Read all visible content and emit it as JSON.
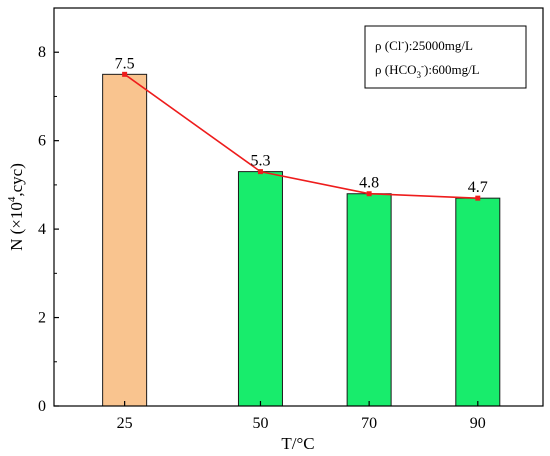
{
  "chart_data": {
    "type": "bar",
    "categories": [
      "25",
      "50",
      "70",
      "90"
    ],
    "x": [
      25,
      50,
      70,
      90
    ],
    "values": [
      7.5,
      5.3,
      4.8,
      4.7
    ],
    "data_labels": [
      "7.5",
      "5.3",
      "4.8",
      "4.7"
    ],
    "line_overlay": true,
    "xlabel": "T/°C",
    "ylabel_main": "N (×10",
    "ylabel_sup": "4",
    "ylabel_tail": ",cyc)",
    "ylim": [
      0,
      9
    ],
    "yticks": [
      0,
      2,
      4,
      6,
      8
    ],
    "ytick_labels": [
      "0",
      "2",
      "4",
      "6",
      "8"
    ],
    "grid": false,
    "legend_position": "top-right",
    "annotation": {
      "line1": {
        "pre": "ρ (Cl",
        "sup": "-",
        "post": "):25000mg/L"
      },
      "line2": {
        "pre": "ρ (HCO",
        "sub": "3",
        "sup": "-",
        "post": "):600mg/L"
      }
    },
    "colors": {
      "first_bar": "#f9c48f",
      "other_bars": "#18ec6c",
      "line": "#ee1c1c",
      "bar_edge": "#1a1a1a",
      "axis": "#000000"
    }
  }
}
